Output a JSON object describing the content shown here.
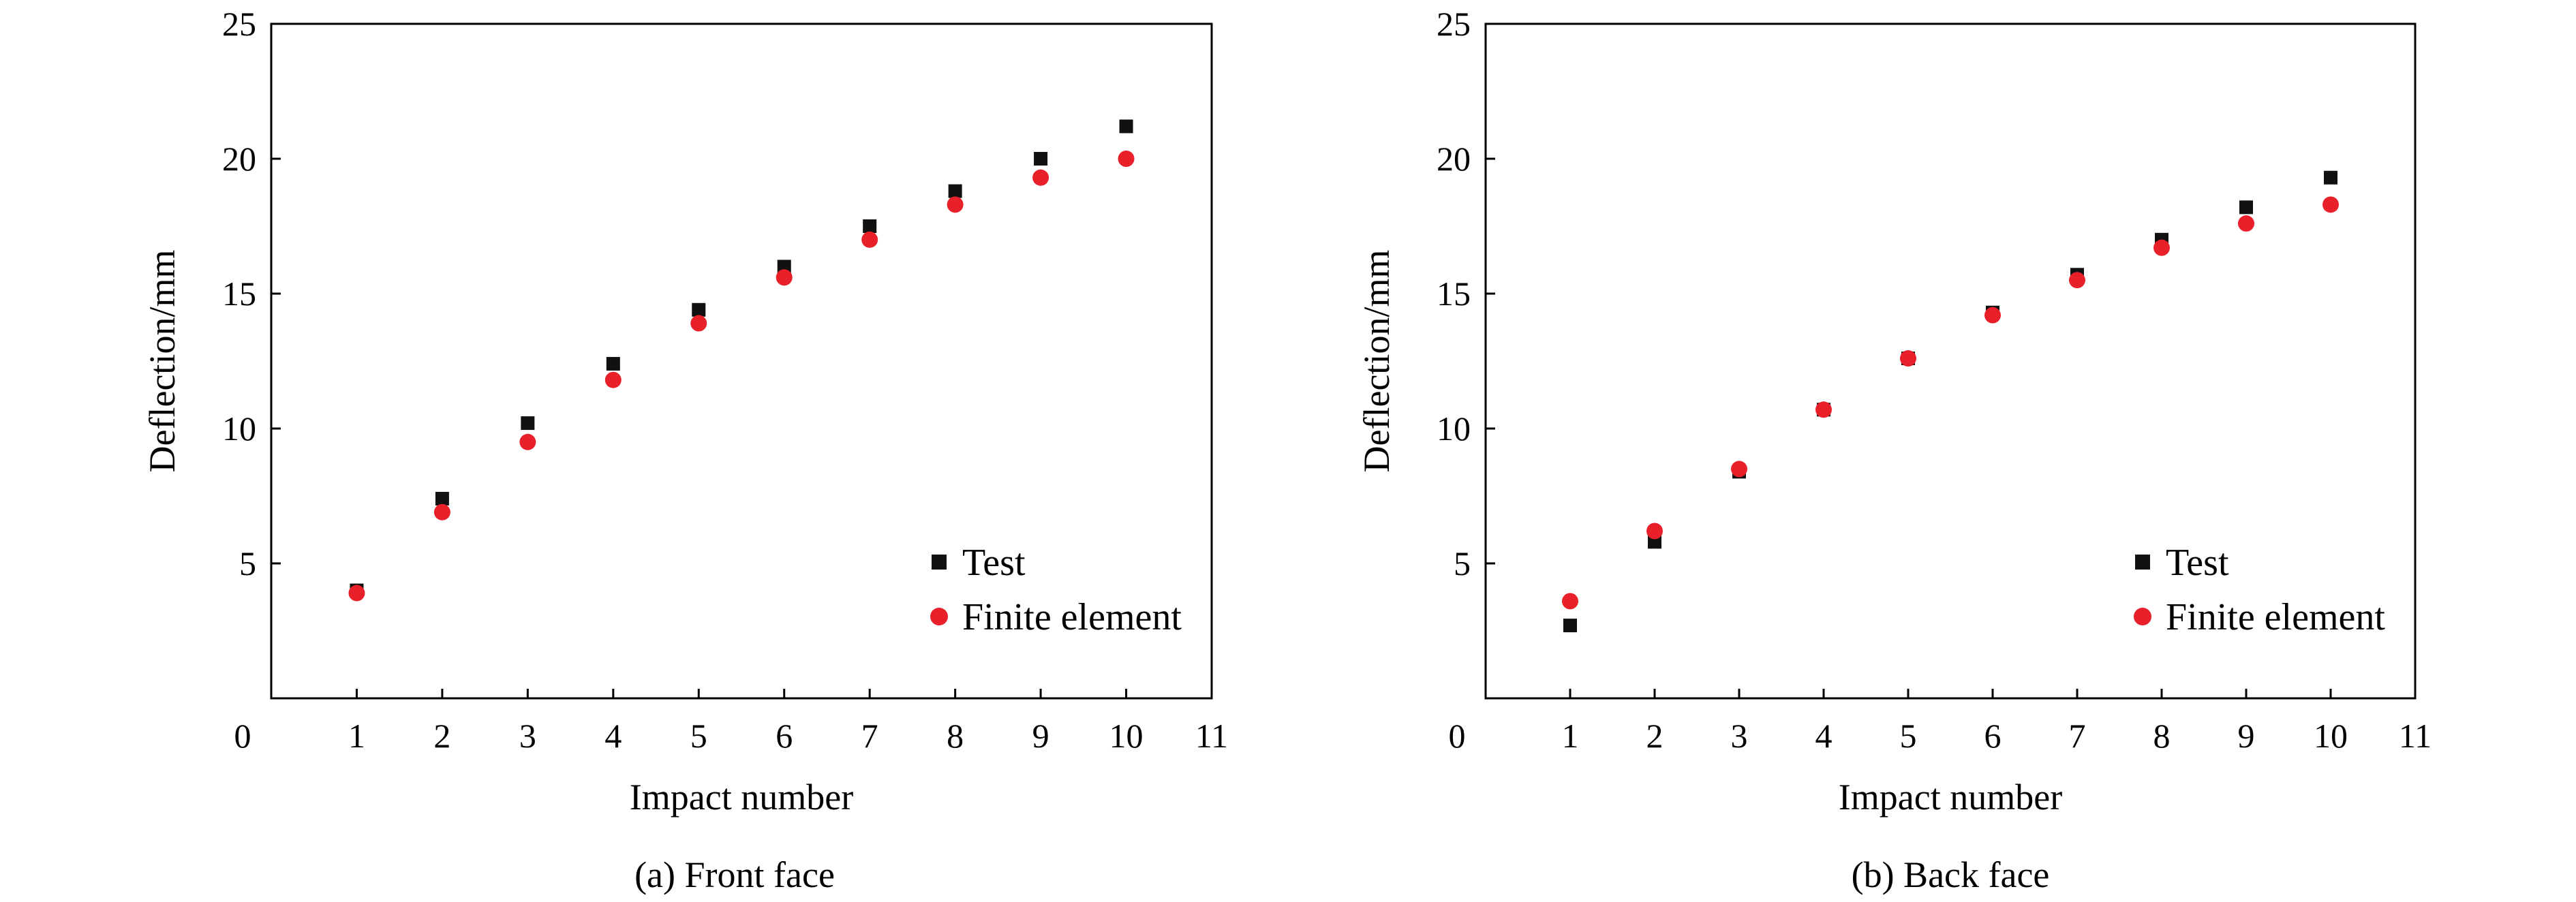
{
  "chart_data": [
    {
      "type": "scatter",
      "caption": "(a) Front face",
      "xlabel": "Impact number",
      "ylabel": "Deflection/mm",
      "xlim": [
        0,
        11
      ],
      "ylim": [
        0,
        25
      ],
      "xticks": [
        0,
        1,
        2,
        3,
        4,
        5,
        6,
        7,
        8,
        9,
        10,
        11
      ],
      "yticks": [
        5,
        10,
        15,
        20,
        25
      ],
      "legend_position": "bottom-right",
      "series": [
        {
          "name": "Test",
          "marker": "square",
          "color": "#111111",
          "x": [
            1,
            2,
            3,
            4,
            5,
            6,
            7,
            8,
            9,
            10
          ],
          "y": [
            4.0,
            7.4,
            10.2,
            12.4,
            14.4,
            16.0,
            17.5,
            18.8,
            20.0,
            21.2
          ]
        },
        {
          "name": "Finite element",
          "marker": "circle",
          "color": "#e8202a",
          "x": [
            1,
            2,
            3,
            4,
            5,
            6,
            7,
            8,
            9,
            10
          ],
          "y": [
            3.9,
            6.9,
            9.5,
            11.8,
            13.9,
            15.6,
            17.0,
            18.3,
            19.3,
            20.0
          ]
        }
      ]
    },
    {
      "type": "scatter",
      "caption": "(b) Back face",
      "xlabel": "Impact number",
      "ylabel": "Deflection/mm",
      "xlim": [
        0,
        11
      ],
      "ylim": [
        0,
        25
      ],
      "xticks": [
        0,
        1,
        2,
        3,
        4,
        5,
        6,
        7,
        8,
        9,
        10,
        11
      ],
      "yticks": [
        5,
        10,
        15,
        20,
        25
      ],
      "legend_position": "bottom-right",
      "series": [
        {
          "name": "Test",
          "marker": "square",
          "color": "#111111",
          "x": [
            1,
            2,
            3,
            4,
            5,
            6,
            7,
            8,
            9,
            10
          ],
          "y": [
            2.7,
            5.8,
            8.4,
            10.7,
            12.6,
            14.3,
            15.7,
            17.0,
            18.2,
            19.3
          ]
        },
        {
          "name": "Finite element",
          "marker": "circle",
          "color": "#e8202a",
          "x": [
            1,
            2,
            3,
            4,
            5,
            6,
            7,
            8,
            9,
            10
          ],
          "y": [
            3.6,
            6.2,
            8.5,
            10.7,
            12.6,
            14.2,
            15.5,
            16.7,
            17.6,
            18.3
          ]
        }
      ]
    }
  ]
}
